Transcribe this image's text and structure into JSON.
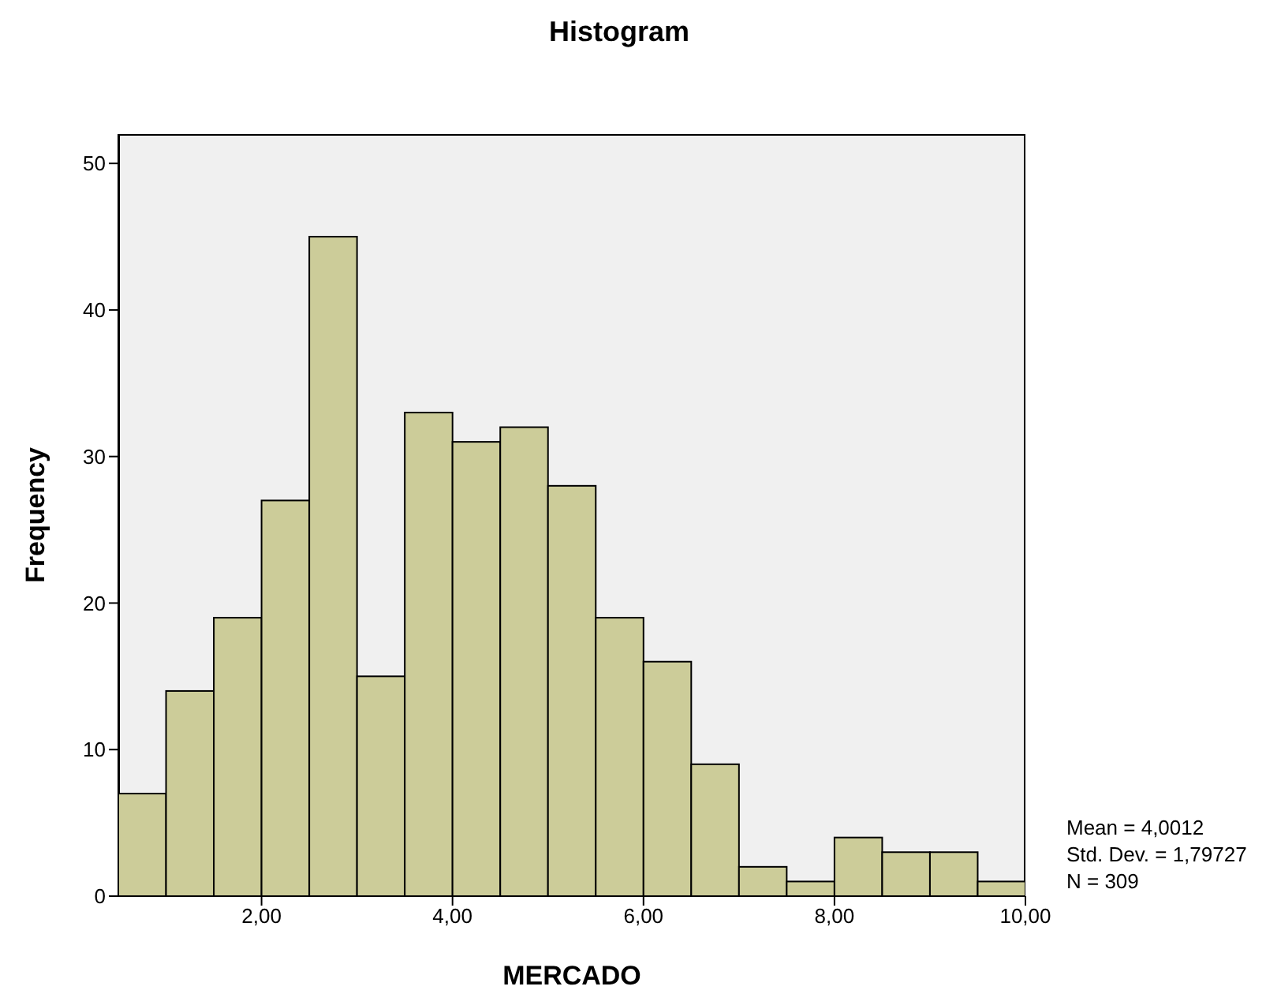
{
  "chart_data": {
    "type": "histogram",
    "title": "Histogram",
    "xlabel": "MERCADO",
    "ylabel": "Frequency",
    "bins": [
      0.5,
      1,
      1.5,
      2,
      2.5,
      3,
      3.5,
      4,
      4.5,
      5,
      5.5,
      6,
      6.5,
      7,
      7.5,
      8,
      8.5,
      9,
      9.5,
      10
    ],
    "values": [
      7,
      14,
      19,
      27,
      45,
      15,
      33,
      31,
      32,
      28,
      19,
      16,
      9,
      2,
      1,
      4,
      3,
      3,
      1
    ],
    "color": "#cccc99",
    "xlim": [
      0.5,
      10
    ],
    "xticks": [
      {
        "value": 2,
        "label": "2,00"
      },
      {
        "value": 4,
        "label": "4,00"
      },
      {
        "value": 6,
        "label": "6,00"
      },
      {
        "value": 8,
        "label": "8,00"
      },
      {
        "value": 10,
        "label": "10,00"
      }
    ],
    "ylim": [
      0,
      52
    ],
    "yticks": [
      0,
      10,
      20,
      30,
      40,
      50
    ],
    "annotations": [
      "Mean = 4,0012",
      "Std. Dev. = 1,79727",
      "N = 309"
    ]
  }
}
